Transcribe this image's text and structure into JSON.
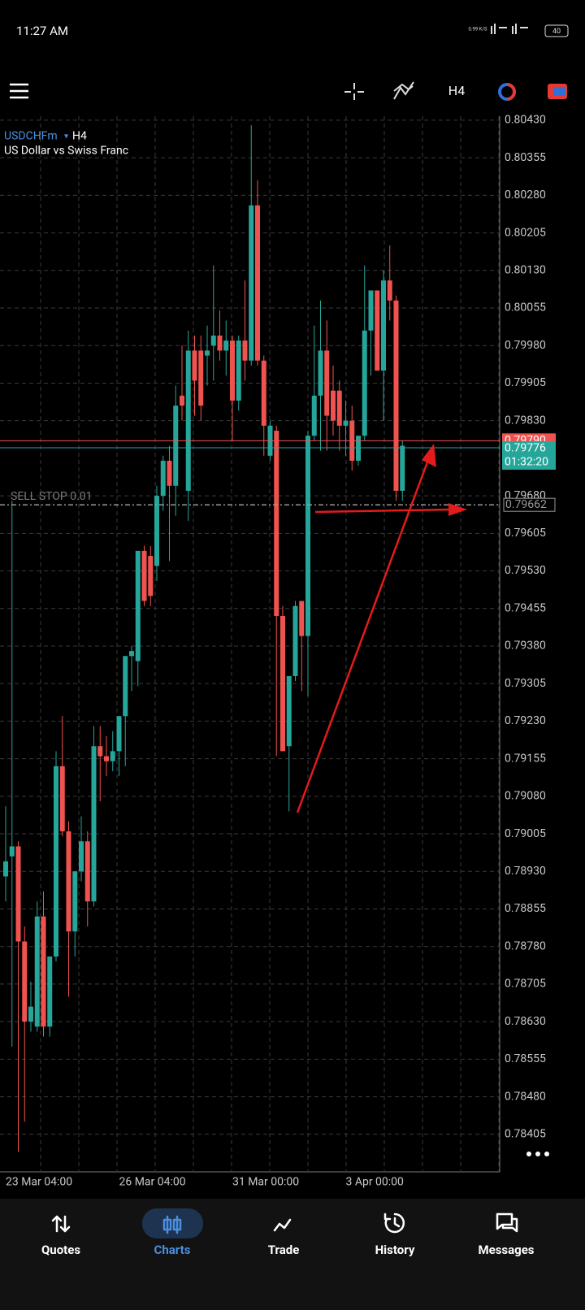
{
  "status_bar": {
    "time": "11:27 AM",
    "net_speed": "0.99 K/S",
    "battery": "40"
  },
  "toolbar": {
    "timeframe": "H4"
  },
  "chart": {
    "symbol": "USDCHFm",
    "timeframe": "H4",
    "description": "US Dollar vs Swiss Franc",
    "ylim": [
      0.7833,
      0.80438
    ],
    "yticks": [
      {
        "value": 0.8043,
        "label": "0.80430"
      },
      0.80355,
      {
        "value": 0.8028,
        "label": "0.80280"
      },
      0.80205,
      {
        "value": 0.8013,
        "label": "0.80130"
      },
      0.80055,
      {
        "value": 0.7998,
        "label": "0.79980"
      },
      0.79905,
      {
        "value": 0.7983,
        "label": "0.79830"
      },
      {
        "value": 0.7968,
        "label": "0.79680"
      },
      0.79605,
      {
        "value": 0.7953,
        "label": "0.79530"
      },
      0.79455,
      {
        "value": 0.7938,
        "label": "0.79380"
      },
      0.79305,
      {
        "value": 0.7923,
        "label": "0.79230"
      },
      0.79155,
      {
        "value": 0.7908,
        "label": "0.79080"
      },
      0.79005,
      {
        "value": 0.7893,
        "label": "0.78930"
      },
      0.78855,
      {
        "value": 0.7878,
        "label": "0.78780"
      },
      0.78705,
      {
        "value": 0.7863,
        "label": "0.78630"
      },
      0.78555,
      {
        "value": 0.7848,
        "label": "0.78480"
      },
      0.78405
    ],
    "x_labels": [
      "23 Mar 04:00",
      "26 Mar 04:00",
      "31 Mar 00:00",
      "3 Apr 00:00"
    ],
    "up_color": "#26a69a",
    "down_color": "#ef5350",
    "candles": [
      {
        "open": 0.7892,
        "high": 0.7906,
        "low": 0.7887,
        "close": 0.7895
      },
      {
        "open": 0.7896,
        "high": 0.7967,
        "low": 0.7858,
        "close": 0.7898
      },
      {
        "open": 0.7898,
        "high": 0.7899,
        "low": 0.7837,
        "close": 0.7879
      },
      {
        "open": 0.7879,
        "high": 0.7882,
        "low": 0.7843,
        "close": 0.7863
      },
      {
        "open": 0.7863,
        "high": 0.7871,
        "low": 0.7861,
        "close": 0.7866
      },
      {
        "open": 0.7862,
        "high": 0.7887,
        "low": 0.7861,
        "close": 0.7884
      },
      {
        "open": 0.7884,
        "high": 0.7889,
        "low": 0.786,
        "close": 0.7862
      },
      {
        "open": 0.7862,
        "high": 0.7875,
        "low": 0.786,
        "close": 0.7876
      },
      {
        "open": 0.7876,
        "high": 0.7917,
        "low": 0.7875,
        "close": 0.7914
      },
      {
        "open": 0.7914,
        "high": 0.7924,
        "low": 0.79,
        "close": 0.7901
      },
      {
        "open": 0.7901,
        "high": 0.7903,
        "low": 0.7868,
        "close": 0.7881
      },
      {
        "open": 0.7881,
        "high": 0.7892,
        "low": 0.7876,
        "close": 0.7893
      },
      {
        "open": 0.7893,
        "high": 0.7904,
        "low": 0.7891,
        "close": 0.7899
      },
      {
        "open": 0.7899,
        "high": 0.7901,
        "low": 0.7882,
        "close": 0.7887
      },
      {
        "open": 0.7887,
        "high": 0.7922,
        "low": 0.7886,
        "close": 0.7918
      },
      {
        "open": 0.7918,
        "high": 0.7922,
        "low": 0.7907,
        "close": 0.7916
      },
      {
        "open": 0.7916,
        "high": 0.792,
        "low": 0.7912,
        "close": 0.7915
      },
      {
        "open": 0.7915,
        "high": 0.7921,
        "low": 0.7913,
        "close": 0.7917
      },
      {
        "open": 0.7917,
        "high": 0.7924,
        "low": 0.7912,
        "close": 0.7924
      },
      {
        "open": 0.7924,
        "high": 0.7936,
        "low": 0.7914,
        "close": 0.7936
      },
      {
        "open": 0.7936,
        "high": 0.7938,
        "low": 0.7929,
        "close": 0.7937
      },
      {
        "open": 0.7935,
        "high": 0.7957,
        "low": 0.793,
        "close": 0.7957
      },
      {
        "open": 0.7957,
        "high": 0.7958,
        "low": 0.7946,
        "close": 0.7947
      },
      {
        "open": 0.7956,
        "high": 0.7958,
        "low": 0.7946,
        "close": 0.7948
      },
      {
        "open": 0.7954,
        "high": 0.797,
        "low": 0.7951,
        "close": 0.7968
      },
      {
        "open": 0.7968,
        "high": 0.7976,
        "low": 0.7965,
        "close": 0.7975
      },
      {
        "open": 0.7975,
        "high": 0.7978,
        "low": 0.7955,
        "close": 0.797
      },
      {
        "open": 0.797,
        "high": 0.799,
        "low": 0.7964,
        "close": 0.7986
      },
      {
        "open": 0.7988,
        "high": 0.7998,
        "low": 0.7983,
        "close": 0.7986
      },
      {
        "open": 0.7969,
        "high": 0.8001,
        "low": 0.7963,
        "close": 0.7997
      },
      {
        "open": 0.7997,
        "high": 0.8,
        "low": 0.7984,
        "close": 0.7991
      },
      {
        "open": 0.7997,
        "high": 0.8,
        "low": 0.7983,
        "close": 0.7986
      },
      {
        "open": 0.7996,
        "high": 0.8002,
        "low": 0.799,
        "close": 0.7997
      },
      {
        "open": 0.7998,
        "high": 0.8014,
        "low": 0.7991,
        "close": 0.8
      },
      {
        "open": 0.8,
        "high": 0.8005,
        "low": 0.7995,
        "close": 0.7997
      },
      {
        "open": 0.7997,
        "high": 0.8003,
        "low": 0.7992,
        "close": 0.7999
      },
      {
        "open": 0.7999,
        "high": 0.8,
        "low": 0.7979,
        "close": 0.7987
      },
      {
        "open": 0.7987,
        "high": 0.8,
        "low": 0.7985,
        "close": 0.7999
      },
      {
        "open": 0.7999,
        "high": 0.8011,
        "low": 0.7991,
        "close": 0.7995
      },
      {
        "open": 0.7995,
        "high": 0.8042,
        "low": 0.7994,
        "close": 0.8026
      },
      {
        "open": 0.8026,
        "high": 0.8031,
        "low": 0.7994,
        "close": 0.7995
      },
      {
        "open": 0.7995,
        "high": 0.7996,
        "low": 0.7976,
        "close": 0.7982
      },
      {
        "open": 0.7976,
        "high": 0.7983,
        "low": 0.7975,
        "close": 0.7982
      },
      {
        "open": 0.7981,
        "high": 0.7982,
        "low": 0.7916,
        "close": 0.7944
      },
      {
        "open": 0.7944,
        "high": 0.7946,
        "low": 0.7917,
        "close": 0.7917
      },
      {
        "open": 0.7918,
        "high": 0.7932,
        "low": 0.7905,
        "close": 0.7932
      },
      {
        "open": 0.7932,
        "high": 0.7947,
        "low": 0.7931,
        "close": 0.7946
      },
      {
        "open": 0.7947,
        "high": 0.7947,
        "low": 0.7929,
        "close": 0.794
      },
      {
        "open": 0.794,
        "high": 0.7981,
        "low": 0.7928,
        "close": 0.798
      },
      {
        "open": 0.798,
        "high": 0.8002,
        "low": 0.7979,
        "close": 0.7988
      },
      {
        "open": 0.7988,
        "high": 0.8007,
        "low": 0.7977,
        "close": 0.7997
      },
      {
        "open": 0.7997,
        "high": 0.8003,
        "low": 0.7977,
        "close": 0.7984
      },
      {
        "open": 0.7989,
        "high": 0.7994,
        "low": 0.798,
        "close": 0.7983
      },
      {
        "open": 0.7989,
        "high": 0.7991,
        "low": 0.7977,
        "close": 0.7982
      },
      {
        "open": 0.7982,
        "high": 0.7987,
        "low": 0.7976,
        "close": 0.7983
      },
      {
        "open": 0.7983,
        "high": 0.7986,
        "low": 0.7973,
        "close": 0.7975
      },
      {
        "open": 0.7975,
        "high": 0.7979,
        "low": 0.7974,
        "close": 0.798
      },
      {
        "open": 0.798,
        "high": 0.8014,
        "low": 0.7979,
        "close": 0.8001
      },
      {
        "open": 0.8001,
        "high": 0.8009,
        "low": 0.7992,
        "close": 0.8009
      },
      {
        "open": 0.8009,
        "high": 0.8009,
        "low": 0.7993,
        "close": 0.7993
      },
      {
        "open": 0.7993,
        "high": 0.8013,
        "low": 0.7983,
        "close": 0.8011
      },
      {
        "open": 0.8011,
        "high": 0.8018,
        "low": 0.8003,
        "close": 0.8007
      },
      {
        "open": 0.8007,
        "high": 0.8008,
        "low": 0.7967,
        "close": 0.7969
      },
      {
        "open": 0.7969,
        "high": 0.7979,
        "low": 0.7967,
        "close": 0.7978
      }
    ],
    "ask_line": {
      "value": 0.7979,
      "label": "0.79790",
      "color": "#ef5350"
    },
    "bid_line": {
      "value": 0.79776,
      "countdown": "01:32:20",
      "color": "#26a69a"
    },
    "sell_stop": {
      "text": "SELL STOP 0.01",
      "price": 0.79662
    }
  },
  "nav": {
    "items": [
      "Quotes",
      "Charts",
      "Trade",
      "History",
      "Messages"
    ],
    "active": "Charts"
  }
}
